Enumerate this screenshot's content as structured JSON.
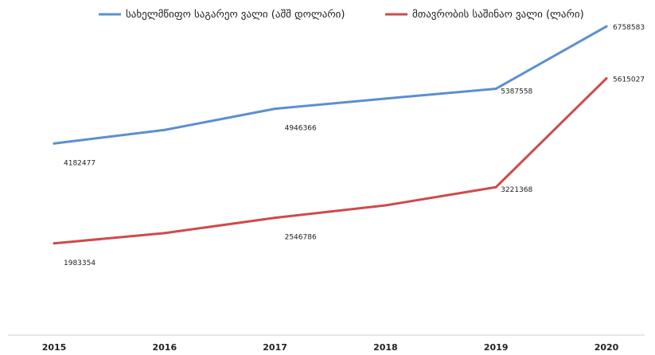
{
  "chart_data": {
    "type": "line",
    "categories": [
      "2015",
      "2016",
      "2017",
      "2018",
      "2019",
      "2020"
    ],
    "series": [
      {
        "name": "სახელმწიფო საგარეო ვალი (აშშ დოლარი)",
        "color": "#5b8fd1",
        "values": [
          4182477,
          4480000,
          4946366,
          5170000,
          5387558,
          6758583
        ],
        "data_labels": [
          "4182477",
          null,
          "4946366",
          null,
          "5387558",
          "6758583"
        ]
      },
      {
        "name": "მთავრობის საშინაო ვალი (ლარი)",
        "color": "#cf4a4a",
        "values": [
          1983354,
          2210000,
          2546786,
          2820000,
          3221368,
          5615027
        ],
        "data_labels": [
          "1983354",
          null,
          "2546786",
          null,
          "3221368",
          "5615027"
        ]
      }
    ],
    "ylim": [
      0,
      7200000
    ],
    "grid": false,
    "legend": "top"
  }
}
